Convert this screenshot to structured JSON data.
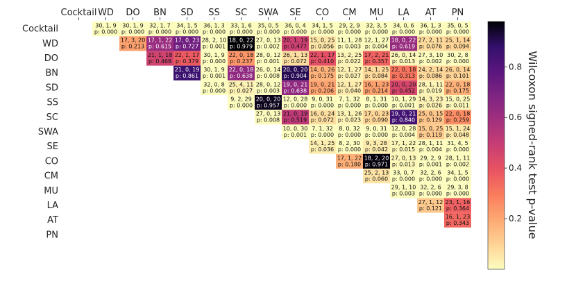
{
  "chart_data": {
    "type": "heatmap",
    "categories": [
      "Cocktail",
      "WD",
      "DO",
      "BN",
      "SD",
      "SS",
      "SC",
      "SWA",
      "SE",
      "CO",
      "CM",
      "MU",
      "LA",
      "AT",
      "PN"
    ],
    "cells": [
      {
        "r": 0,
        "c": 1,
        "text": "30, 1, 9",
        "p": 0.0
      },
      {
        "r": 0,
        "c": 2,
        "text": "30, 1, 9",
        "p": 0.0
      },
      {
        "r": 0,
        "c": 3,
        "text": "32, 1, 7",
        "p": 0.0
      },
      {
        "r": 0,
        "c": 4,
        "text": "34, 1, 5",
        "p": 0.0
      },
      {
        "r": 0,
        "c": 5,
        "text": "36, 1, 3",
        "p": 0.0
      },
      {
        "r": 0,
        "c": 6,
        "text": "33, 1, 6",
        "p": 0.0
      },
      {
        "r": 0,
        "c": 7,
        "text": "35, 0, 5",
        "p": 0.0
      },
      {
        "r": 0,
        "c": 8,
        "text": "36, 0, 4",
        "p": 0.0
      },
      {
        "r": 0,
        "c": 9,
        "text": "34, 1, 5",
        "p": 0.0
      },
      {
        "r": 0,
        "c": 10,
        "text": "29, 2, 9",
        "p": 0.0
      },
      {
        "r": 0,
        "c": 11,
        "text": "32, 3, 5",
        "p": 0.0
      },
      {
        "r": 0,
        "c": 12,
        "text": "34, 0, 6",
        "p": 0.0
      },
      {
        "r": 0,
        "c": 13,
        "text": "36, 1, 3",
        "p": 0.0
      },
      {
        "r": 0,
        "c": 14,
        "text": "35, 0, 5",
        "p": 0.0
      },
      {
        "r": 1,
        "c": 2,
        "text": "17, 3, 20",
        "p": 0.213
      },
      {
        "r": 1,
        "c": 3,
        "text": "17, 1, 22",
        "p": 0.615
      },
      {
        "r": 1,
        "c": 4,
        "text": "17, 0, 23",
        "p": 0.727
      },
      {
        "r": 1,
        "c": 5,
        "text": "28, 2, 10",
        "p": 0.001
      },
      {
        "r": 1,
        "c": 6,
        "text": "18, 0, 22",
        "p": 0.979
      },
      {
        "r": 1,
        "c": 7,
        "text": "27, 0, 13",
        "p": 0.002
      },
      {
        "r": 1,
        "c": 8,
        "text": "20, 1, 19",
        "p": 0.477
      },
      {
        "r": 1,
        "c": 9,
        "text": "15, 0, 25",
        "p": 0.056
      },
      {
        "r": 1,
        "c": 10,
        "text": "11, 1, 28",
        "p": 0.003
      },
      {
        "r": 1,
        "c": 11,
        "text": "12, 1, 27",
        "p": 0.004
      },
      {
        "r": 1,
        "c": 12,
        "text": "18, 0, 22",
        "p": 0.619
      },
      {
        "r": 1,
        "c": 13,
        "text": "27, 2, 11",
        "p": 0.076
      },
      {
        "r": 1,
        "c": 14,
        "text": "25, 1, 14",
        "p": 0.094
      },
      {
        "r": 2,
        "c": 3,
        "text": "21, 1, 18",
        "p": 0.468
      },
      {
        "r": 2,
        "c": 4,
        "text": "22, 1, 17",
        "p": 0.379
      },
      {
        "r": 2,
        "c": 5,
        "text": "30, 1, 9",
        "p": 0.0
      },
      {
        "r": 2,
        "c": 6,
        "text": "22, 0, 18",
        "p": 0.237
      },
      {
        "r": 2,
        "c": 7,
        "text": "28, 0, 12",
        "p": 0.001
      },
      {
        "r": 2,
        "c": 8,
        "text": "26, 1, 13",
        "p": 0.072
      },
      {
        "r": 2,
        "c": 9,
        "text": "22, 1, 17",
        "p": 0.41
      },
      {
        "r": 2,
        "c": 10,
        "text": "13, 2, 25",
        "p": 0.022
      },
      {
        "r": 2,
        "c": 11,
        "text": "17, 2, 21",
        "p": 0.357
      },
      {
        "r": 2,
        "c": 12,
        "text": "26, 0, 14",
        "p": 0.013
      },
      {
        "r": 2,
        "c": 13,
        "text": "27, 3, 10",
        "p": 0.002
      },
      {
        "r": 2,
        "c": 14,
        "text": "30, 2, 8",
        "p": 0.0
      },
      {
        "r": 3,
        "c": 4,
        "text": "21, 0, 19",
        "p": 0.861
      },
      {
        "r": 3,
        "c": 5,
        "text": "30, 1, 9",
        "p": 0.001
      },
      {
        "r": 3,
        "c": 6,
        "text": "22, 0, 18",
        "p": 0.638
      },
      {
        "r": 3,
        "c": 7,
        "text": "26, 0, 14",
        "p": 0.008
      },
      {
        "r": 3,
        "c": 8,
        "text": "20, 0, 20",
        "p": 0.904
      },
      {
        "r": 3,
        "c": 9,
        "text": "14, 0, 26",
        "p": 0.175
      },
      {
        "r": 3,
        "c": 10,
        "text": "12, 1, 27",
        "p": 0.027
      },
      {
        "r": 3,
        "c": 11,
        "text": "14, 1, 25",
        "p": 0.084
      },
      {
        "r": 3,
        "c": 12,
        "text": "22, 0, 18",
        "p": 0.313
      },
      {
        "r": 3,
        "c": 13,
        "text": "24, 2, 14",
        "p": 0.086
      },
      {
        "r": 3,
        "c": 14,
        "text": "26, 0, 14",
        "p": 0.101
      },
      {
        "r": 4,
        "c": 5,
        "text": "32, 0, 8",
        "p": 0.0
      },
      {
        "r": 4,
        "c": 6,
        "text": "25, 4, 11",
        "p": 0.027
      },
      {
        "r": 4,
        "c": 7,
        "text": "28, 0, 12",
        "p": 0.003
      },
      {
        "r": 4,
        "c": 8,
        "text": "19, 0, 21",
        "p": 0.638
      },
      {
        "r": 4,
        "c": 9,
        "text": "19, 0, 21",
        "p": 0.206
      },
      {
        "r": 4,
        "c": 10,
        "text": "12, 1, 27",
        "p": 0.04
      },
      {
        "r": 4,
        "c": 11,
        "text": "16, 1, 23",
        "p": 0.214
      },
      {
        "r": 4,
        "c": 12,
        "text": "20, 0, 20",
        "p": 0.452
      },
      {
        "r": 4,
        "c": 13,
        "text": "28, 1, 11",
        "p": 0.019
      },
      {
        "r": 4,
        "c": 14,
        "text": "22, 0, 18",
        "p": 0.175
      },
      {
        "r": 5,
        "c": 6,
        "text": "9, 2, 29",
        "p": 0.0
      },
      {
        "r": 5,
        "c": 7,
        "text": "20, 0, 20",
        "p": 0.957
      },
      {
        "r": 5,
        "c": 8,
        "text": "12, 0, 28",
        "p": 0.0
      },
      {
        "r": 5,
        "c": 9,
        "text": "9, 0, 31",
        "p": 0.0
      },
      {
        "r": 5,
        "c": 10,
        "text": "7, 1, 32",
        "p": 0.0
      },
      {
        "r": 5,
        "c": 11,
        "text": "8, 1, 31",
        "p": 0.0
      },
      {
        "r": 5,
        "c": 12,
        "text": "10, 1, 29",
        "p": 0.001
      },
      {
        "r": 5,
        "c": 13,
        "text": "14, 3, 23",
        "p": 0.026
      },
      {
        "r": 5,
        "c": 14,
        "text": "15, 0, 25",
        "p": 0.011
      },
      {
        "r": 6,
        "c": 7,
        "text": "27, 0, 13",
        "p": 0.008
      },
      {
        "r": 6,
        "c": 8,
        "text": "21, 0, 19",
        "p": 0.519
      },
      {
        "r": 6,
        "c": 9,
        "text": "16, 0, 24",
        "p": 0.072
      },
      {
        "r": 6,
        "c": 10,
        "text": "13, 1, 26",
        "p": 0.023
      },
      {
        "r": 6,
        "c": 11,
        "text": "17, 0, 23",
        "p": 0.09
      },
      {
        "r": 6,
        "c": 12,
        "text": "19, 0, 21",
        "p": 0.84
      },
      {
        "r": 6,
        "c": 13,
        "text": "25, 0, 15",
        "p": 0.129
      },
      {
        "r": 6,
        "c": 14,
        "text": "22, 0, 18",
        "p": 0.259
      },
      {
        "r": 7,
        "c": 8,
        "text": "10, 0, 30",
        "p": 0.001
      },
      {
        "r": 7,
        "c": 9,
        "text": "7, 1, 32",
        "p": 0.0
      },
      {
        "r": 7,
        "c": 10,
        "text": "8, 0, 32",
        "p": 0.0
      },
      {
        "r": 7,
        "c": 11,
        "text": "9, 0, 31",
        "p": 0.0
      },
      {
        "r": 7,
        "c": 12,
        "text": "12, 0, 28",
        "p": 0.004
      },
      {
        "r": 7,
        "c": 13,
        "text": "15, 0, 25",
        "p": 0.119
      },
      {
        "r": 7,
        "c": 14,
        "text": "15, 1, 24",
        "p": 0.048
      },
      {
        "r": 8,
        "c": 9,
        "text": "14, 1, 25",
        "p": 0.036
      },
      {
        "r": 8,
        "c": 10,
        "text": "8, 2, 30",
        "p": 0.0
      },
      {
        "r": 8,
        "c": 11,
        "text": "9, 3, 28",
        "p": 0.042
      },
      {
        "r": 8,
        "c": 12,
        "text": "17, 1, 22",
        "p": 0.015
      },
      {
        "r": 8,
        "c": 13,
        "text": "28, 1, 11",
        "p": 0.004
      },
      {
        "r": 8,
        "c": 14,
        "text": "31, 4, 5",
        "p": 0.0
      },
      {
        "r": 9,
        "c": 10,
        "text": "17, 1, 22",
        "p": 0.18
      },
      {
        "r": 9,
        "c": 11,
        "text": "18, 2, 20",
        "p": 0.971
      },
      {
        "r": 9,
        "c": 12,
        "text": "27, 0, 13",
        "p": 0.013
      },
      {
        "r": 9,
        "c": 13,
        "text": "29, 2, 9",
        "p": 0.001
      },
      {
        "r": 9,
        "c": 14,
        "text": "28, 1, 11",
        "p": 0.002
      },
      {
        "r": 10,
        "c": 11,
        "text": "25, 2, 13",
        "p": 0.06
      },
      {
        "r": 10,
        "c": 12,
        "text": "33, 0, 7",
        "p": 0.0
      },
      {
        "r": 10,
        "c": 13,
        "text": "32, 2, 6",
        "p": 0.0
      },
      {
        "r": 10,
        "c": 14,
        "text": "34, 1, 5",
        "p": 0.0
      },
      {
        "r": 11,
        "c": 12,
        "text": "29, 1, 10",
        "p": 0.003
      },
      {
        "r": 11,
        "c": 13,
        "text": "32, 2, 6",
        "p": 0.0
      },
      {
        "r": 11,
        "c": 14,
        "text": "29, 3, 8",
        "p": 0.0
      },
      {
        "r": 12,
        "c": 13,
        "text": "27, 1, 12",
        "p": 0.121
      },
      {
        "r": 12,
        "c": 14,
        "text": "23, 1, 16",
        "p": 0.364
      },
      {
        "r": 13,
        "c": 14,
        "text": "16, 1, 23",
        "p": 0.343
      }
    ],
    "colorbar": {
      "label": "Wilcoxon signed-rank test p-value",
      "ticks": [
        0.2,
        0.4,
        0.6,
        0.8
      ],
      "tick_labels": [
        "0.2",
        "0.4",
        "0.6",
        "0.8"
      ],
      "range": [
        0.0,
        0.979
      ],
      "colormap": "magma_r"
    }
  }
}
